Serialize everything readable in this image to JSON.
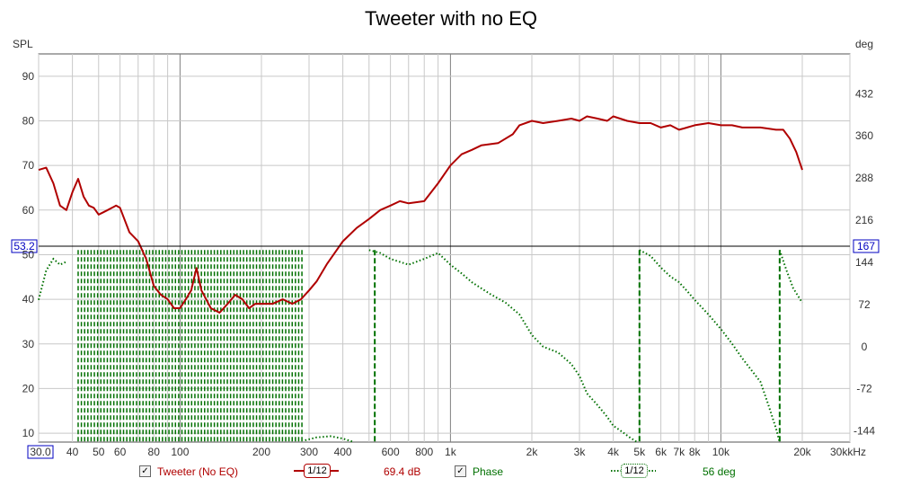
{
  "title": "Tweeter with no EQ",
  "left_axis_label": "SPL",
  "right_axis_label": "deg",
  "x_unit_label": "kHz",
  "x_ticks": [
    "30.0",
    "40",
    "50",
    "60",
    "80",
    "100",
    "200",
    "300",
    "400",
    "600",
    "800",
    "1k",
    "2k",
    "3k",
    "4k",
    "5k",
    "6k",
    "7k",
    "8k",
    "10k",
    "20k",
    "30k"
  ],
  "spl_ticks": [
    "10",
    "20",
    "30",
    "40",
    "50",
    "60",
    "70",
    "80",
    "90"
  ],
  "phase_ticks": [
    "-144",
    "-72",
    "0",
    "72",
    "144",
    "216",
    "288",
    "360",
    "432"
  ],
  "cursor": {
    "spl_label": "53.2",
    "phase_label": "167"
  },
  "legend": {
    "spl_name": "Tweeter (No EQ)",
    "spl_smoothing": "1/12",
    "spl_value": "69.4 dB",
    "phase_name": "Phase",
    "phase_smoothing": "1/12",
    "phase_value": "56 deg",
    "checked": "✓"
  },
  "colors": {
    "spl": "#b00000",
    "phase": "#007000",
    "grid": "#c8c8c8",
    "major_grid": "#808080",
    "cursor_box": "#0000c0"
  },
  "chart_data": {
    "type": "line",
    "title": "Tweeter with no EQ",
    "x_scale": "log",
    "xlim": [
      30,
      30000
    ],
    "ylim_spl": [
      8,
      95
    ],
    "ylim_phase": [
      -163,
      500
    ],
    "grid": true,
    "series": [
      {
        "name": "Tweeter (No EQ)",
        "axis": "SPL",
        "x": [
          30,
          32,
          34,
          36,
          38,
          40,
          42,
          44,
          46,
          48,
          50,
          52,
          54,
          56,
          58,
          60,
          65,
          70,
          75,
          80,
          85,
          90,
          95,
          100,
          105,
          110,
          115,
          120,
          130,
          140,
          150,
          160,
          170,
          180,
          190,
          200,
          220,
          240,
          260,
          280,
          300,
          320,
          350,
          400,
          450,
          500,
          550,
          600,
          650,
          700,
          800,
          900,
          1000,
          1100,
          1200,
          1300,
          1500,
          1700,
          1800,
          2000,
          2200,
          2500,
          2800,
          3000,
          3200,
          3500,
          3800,
          4000,
          4500,
          5000,
          5500,
          6000,
          6500,
          7000,
          7500,
          8000,
          9000,
          10000,
          11000,
          12000,
          14000,
          16000,
          17000,
          18000,
          19000,
          20000
        ],
        "values": [
          69,
          69.5,
          66,
          61,
          60,
          64,
          67,
          63,
          61,
          60.5,
          59,
          59.5,
          60,
          60.5,
          61,
          60.5,
          55,
          53,
          49,
          43,
          41,
          40,
          38,
          38,
          40,
          42,
          47,
          42,
          38,
          37,
          39,
          41,
          40,
          38,
          39,
          39,
          39,
          40,
          39,
          40,
          42,
          44,
          48,
          53,
          56,
          58,
          60,
          61,
          62,
          61.5,
          62,
          66,
          70,
          72.5,
          73.5,
          74.5,
          75,
          77,
          79,
          80,
          79.5,
          80,
          80.5,
          80,
          81,
          80.5,
          80,
          81,
          80,
          79.5,
          79.5,
          78.5,
          79,
          78,
          78.5,
          79,
          79.5,
          79,
          79,
          78.5,
          78.5,
          78,
          78,
          76,
          73,
          69
        ]
      },
      {
        "name": "Phase",
        "axis": "deg",
        "x": [
          500,
          550,
          600,
          700,
          800,
          900,
          1000,
          1100,
          1200,
          1400,
          1600,
          1800,
          2000,
          2200,
          2500,
          2800,
          3000,
          3200,
          3500,
          3800,
          4000,
          4300,
          4600,
          4900
        ],
        "values": [
          165,
          160,
          150,
          140,
          150,
          160,
          140,
          125,
          110,
          90,
          75,
          55,
          20,
          0,
          -10,
          -30,
          -50,
          -80,
          -100,
          -120,
          -135,
          -145,
          -155,
          -163
        ]
      }
    ]
  }
}
